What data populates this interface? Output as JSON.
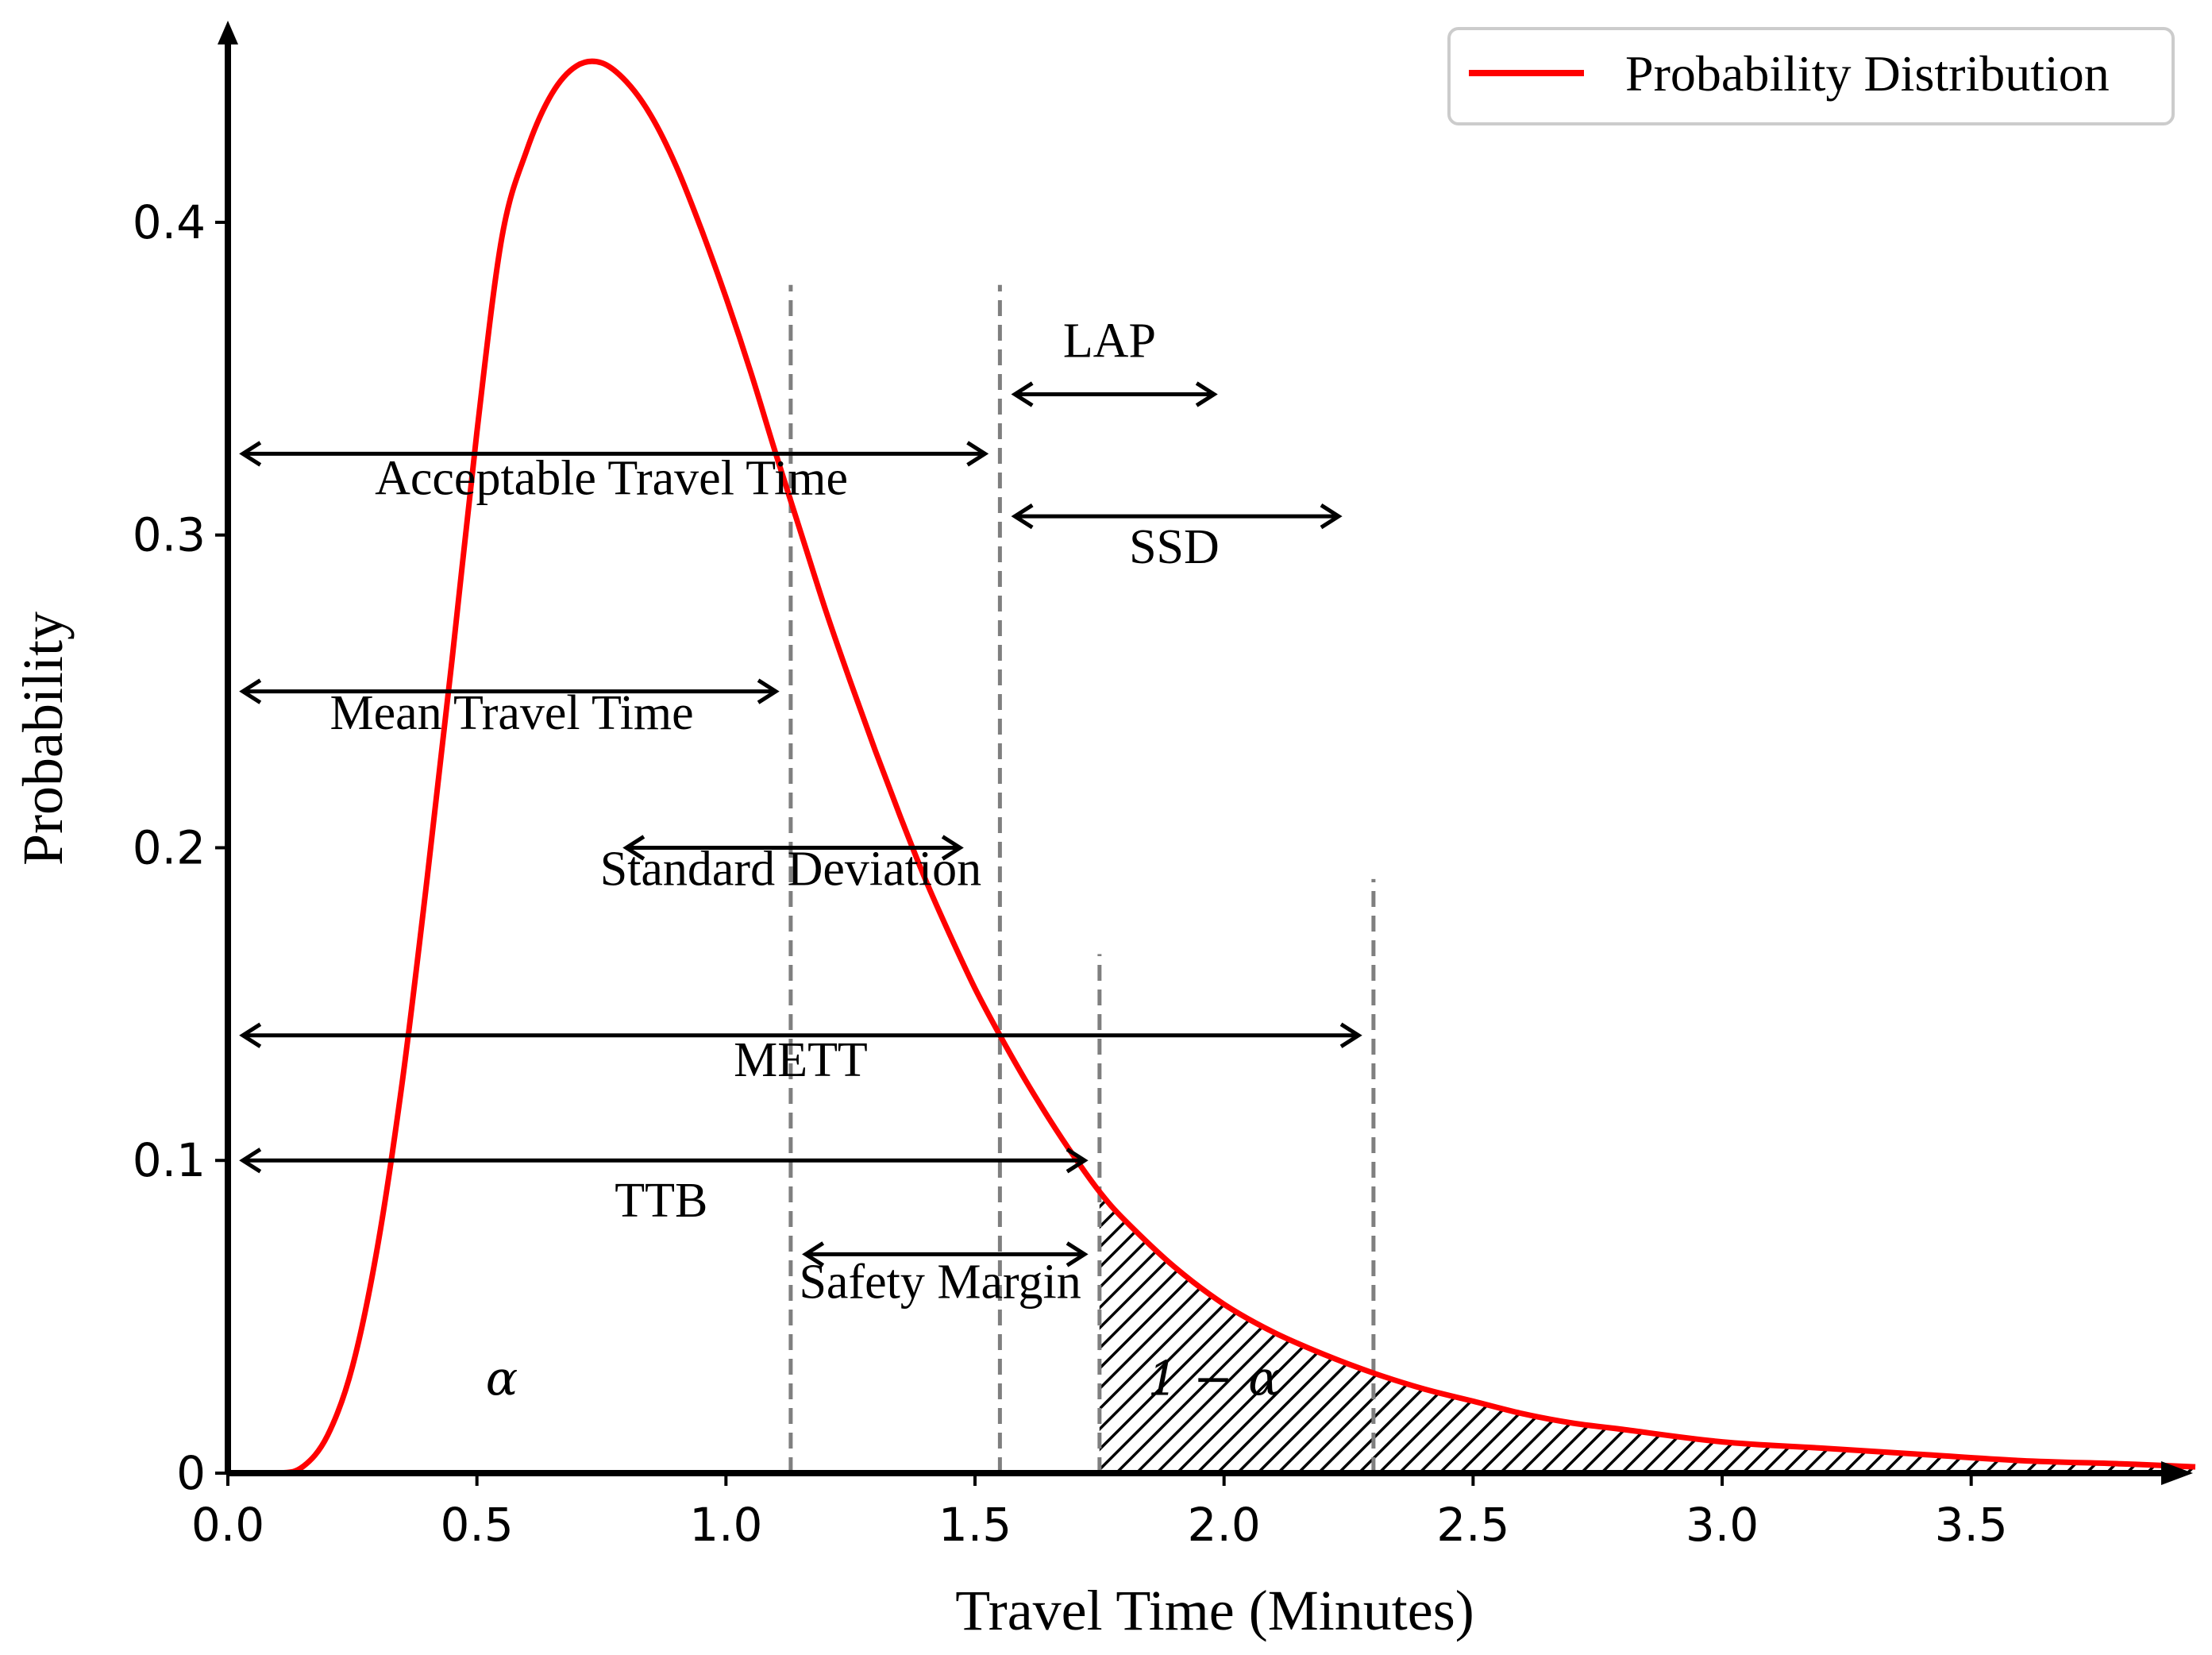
{
  "chart_data": {
    "type": "line",
    "title": "",
    "xlabel": "Travel Time (Minutes)",
    "ylabel": "Probability",
    "xlim": [
      0.0,
      3.95
    ],
    "ylim": [
      0.0,
      0.465
    ],
    "xticks": [
      0.0,
      0.5,
      1.0,
      1.5,
      2.0,
      2.5,
      3.0,
      3.5
    ],
    "xtick_labels": [
      "0.0",
      "0.5",
      "1.0",
      "1.5",
      "2.0",
      "2.5",
      "3.0",
      "3.5"
    ],
    "yticks": [
      0.0,
      0.1,
      0.2,
      0.3,
      0.4
    ],
    "ytick_labels": [
      "0",
      "0.1",
      "0.2",
      "0.3",
      "0.4"
    ],
    "legend": {
      "position": "top-right",
      "entries": [
        "Probability Distribution"
      ]
    },
    "series": [
      {
        "name": "Probability Distribution",
        "color": "#ff0000",
        "x": [
          0.0,
          0.1,
          0.15,
          0.2,
          0.25,
          0.3,
          0.35,
          0.4,
          0.45,
          0.5,
          0.55,
          0.6,
          0.65,
          0.7,
          0.75,
          0.8,
          0.85,
          0.9,
          0.95,
          1.0,
          1.05,
          1.1,
          1.15,
          1.2,
          1.25,
          1.3,
          1.35,
          1.4,
          1.45,
          1.5,
          1.55,
          1.6,
          1.65,
          1.7,
          1.75,
          1.8,
          1.9,
          2.0,
          2.1,
          2.2,
          2.3,
          2.4,
          2.5,
          2.6,
          2.7,
          2.8,
          3.0,
          3.2,
          3.4,
          3.6,
          3.8,
          3.95
        ],
        "y": [
          0.0,
          0.0,
          0.002,
          0.012,
          0.034,
          0.072,
          0.125,
          0.19,
          0.26,
          0.333,
          0.395,
          0.423,
          0.441,
          0.45,
          0.451,
          0.445,
          0.434,
          0.418,
          0.398,
          0.376,
          0.352,
          0.326,
          0.301,
          0.276,
          0.253,
          0.231,
          0.21,
          0.19,
          0.172,
          0.155,
          0.14,
          0.126,
          0.113,
          0.101,
          0.09,
          0.081,
          0.066,
          0.054,
          0.045,
          0.038,
          0.032,
          0.027,
          0.023,
          0.019,
          0.016,
          0.014,
          0.01,
          0.008,
          0.006,
          0.004,
          0.003,
          0.002
        ]
      }
    ],
    "shaded_region": {
      "from": 1.75,
      "to": 3.95,
      "pattern": "hatch"
    },
    "vlines": [
      {
        "x": 1.13,
        "top": 0.38
      },
      {
        "x": 1.55,
        "top": 0.38
      },
      {
        "x": 1.75,
        "top": 0.166
      },
      {
        "x": 2.3,
        "top": 0.19
      }
    ],
    "annotations": [
      {
        "text": "LAP",
        "x1": 1.58,
        "x2": 1.98,
        "y": 0.345,
        "label_x": 1.77,
        "label_y": 0.357
      },
      {
        "text": "Acceptable Travel Time",
        "x1": 0.03,
        "x2": 1.52,
        "y": 0.326,
        "label_x": 0.77,
        "label_y": 0.313
      },
      {
        "text": "SSD",
        "x1": 1.58,
        "x2": 2.23,
        "y": 0.306,
        "label_x": 1.9,
        "label_y": 0.291
      },
      {
        "text": "Mean Travel Time",
        "x1": 0.03,
        "x2": 1.1,
        "y": 0.25,
        "label_x": 0.57,
        "label_y": 0.238
      },
      {
        "text": "Standard Deviation",
        "x1": 0.8,
        "x2": 1.47,
        "y": 0.2,
        "label_x": 1.13,
        "label_y": 0.188
      },
      {
        "text": "METT",
        "x1": 0.03,
        "x2": 2.27,
        "y": 0.14,
        "label_x": 1.15,
        "label_y": 0.127
      },
      {
        "text": "TTB",
        "x1": 0.03,
        "x2": 1.72,
        "y": 0.1,
        "label_x": 0.87,
        "label_y": 0.082
      },
      {
        "text": "Safety Margin",
        "x1": 1.16,
        "x2": 1.72,
        "y": 0.07,
        "label_x": 1.43,
        "label_y": 0.056
      }
    ],
    "greek_labels": [
      {
        "text": "α",
        "x": 0.55,
        "y": 0.025
      },
      {
        "text": "1 − α",
        "x": 1.98,
        "y": 0.025
      }
    ]
  }
}
